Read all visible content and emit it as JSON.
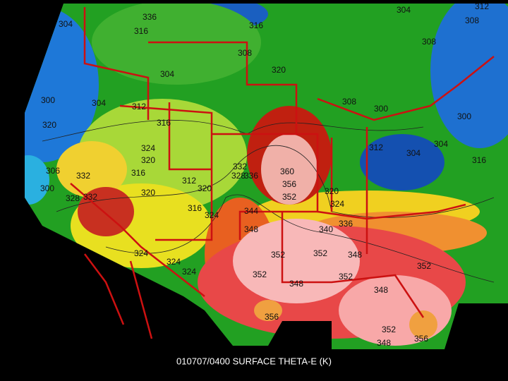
{
  "caption": "010707/0400 SURFACE THETA-E (K)",
  "contour_labels": [
    "304",
    "316",
    "336",
    "316",
    "308",
    "304",
    "320",
    "300",
    "304",
    "312",
    "320",
    "316",
    "324",
    "320",
    "306",
    "332",
    "316",
    "312",
    "320",
    "332",
    "328",
    "336",
    "360",
    "356",
    "352",
    "300",
    "328",
    "332",
    "320",
    "316",
    "324",
    "344",
    "348",
    "324",
    "336",
    "340",
    "348",
    "352",
    "352",
    "352",
    "348",
    "352",
    "348",
    "352",
    "356",
    "352",
    "348",
    "356",
    "324",
    "324",
    "324",
    "304",
    "308",
    "312",
    "308",
    "300",
    "304",
    "304",
    "316",
    "308",
    "300",
    "320",
    "312"
  ]
}
